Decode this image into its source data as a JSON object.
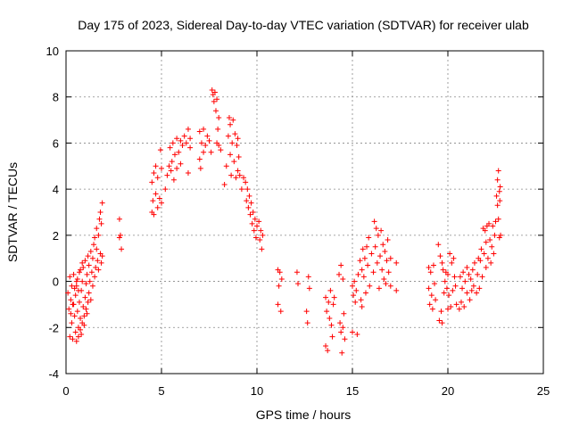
{
  "chart_data": {
    "type": "scatter",
    "title": "Day 175 of 2023, Sidereal Day-to-day VTEC variation (SDTVAR) for receiver ulab",
    "xlabel": "GPS time / hours",
    "ylabel": "SDTVAR / TECUs",
    "xlim": [
      0,
      25
    ],
    "ylim": [
      -4,
      10
    ],
    "xticks": [
      0,
      5,
      10,
      15,
      20,
      25
    ],
    "yticks": [
      -4,
      -2,
      0,
      2,
      4,
      6,
      8,
      10
    ],
    "xtick_labels": [
      "0",
      "5",
      "10",
      "15",
      "20",
      "25"
    ],
    "ytick_labels": [
      "-4",
      "-2",
      "0",
      "2",
      "4",
      "6",
      "8",
      "10"
    ],
    "grid": true,
    "marker": "+",
    "color": "#ff0000",
    "series": [
      {
        "name": "SDTVAR",
        "points": [
          [
            0.1,
            -0.5
          ],
          [
            0.15,
            -1.2
          ],
          [
            0.2,
            -2.4
          ],
          [
            0.2,
            0.2
          ],
          [
            0.25,
            -0.8
          ],
          [
            0.3,
            -1.8
          ],
          [
            0.3,
            -0.2
          ],
          [
            0.35,
            -2.5
          ],
          [
            0.4,
            -1.0
          ],
          [
            0.4,
            0.3
          ],
          [
            0.45,
            -1.5
          ],
          [
            0.5,
            -0.6
          ],
          [
            0.5,
            -2.2
          ],
          [
            0.55,
            -0.2
          ],
          [
            0.6,
            -1.3
          ],
          [
            0.6,
            0.1
          ],
          [
            0.65,
            -2.0
          ],
          [
            0.7,
            -0.9
          ],
          [
            0.7,
            0.4
          ],
          [
            0.75,
            -1.6
          ],
          [
            0.8,
            -0.4
          ],
          [
            0.8,
            -2.3
          ],
          [
            0.85,
            0.0
          ],
          [
            0.9,
            -1.1
          ],
          [
            0.9,
            0.6
          ],
          [
            0.95,
            -1.9
          ],
          [
            1.0,
            -0.7
          ],
          [
            1.0,
            0.9
          ],
          [
            1.05,
            -0.1
          ],
          [
            1.1,
            -1.4
          ],
          [
            1.1,
            0.3
          ],
          [
            1.15,
            1.1
          ],
          [
            1.2,
            -0.5
          ],
          [
            1.2,
            0.7
          ],
          [
            1.25,
            0.0
          ],
          [
            1.3,
            1.3
          ],
          [
            1.3,
            -0.8
          ],
          [
            1.35,
            0.4
          ],
          [
            1.4,
            1.0
          ],
          [
            1.4,
            -0.2
          ],
          [
            1.45,
            1.6
          ],
          [
            1.5,
            0.2
          ],
          [
            1.5,
            1.9
          ],
          [
            1.55,
            0.6
          ],
          [
            1.6,
            1.4
          ],
          [
            1.6,
            2.3
          ],
          [
            1.65,
            0.9
          ],
          [
            1.7,
            2.0
          ],
          [
            1.7,
            0.5
          ],
          [
            1.75,
            2.7
          ],
          [
            1.8,
            1.2
          ],
          [
            1.8,
            3.0
          ],
          [
            1.85,
            0.8
          ],
          [
            1.85,
            2.5
          ],
          [
            1.9,
            3.4
          ],
          [
            1.9,
            1.1
          ],
          [
            0.55,
            -2.6
          ],
          [
            0.65,
            -2.4
          ],
          [
            0.75,
            -2.1
          ],
          [
            0.85,
            -1.8
          ],
          [
            0.95,
            -1.5
          ],
          [
            1.05,
            -1.2
          ],
          [
            1.15,
            -0.9
          ],
          [
            0.25,
            -1.4
          ],
          [
            0.35,
            -1.0
          ],
          [
            0.45,
            -0.3
          ],
          [
            0.55,
            0.0
          ],
          [
            0.65,
            -0.4
          ],
          [
            0.75,
            0.5
          ],
          [
            0.85,
            0.8
          ],
          [
            2.8,
            2.7
          ],
          [
            2.85,
            2.0
          ],
          [
            2.9,
            1.4
          ],
          [
            2.8,
            1.9
          ],
          [
            4.5,
            3.0
          ],
          [
            4.5,
            4.3
          ],
          [
            4.55,
            3.5
          ],
          [
            4.6,
            4.7
          ],
          [
            4.6,
            2.9
          ],
          [
            4.7,
            3.8
          ],
          [
            4.7,
            5.0
          ],
          [
            4.8,
            3.2
          ],
          [
            4.8,
            4.5
          ],
          [
            4.9,
            3.6
          ],
          [
            4.95,
            5.7
          ],
          [
            5.0,
            4.9
          ],
          [
            5.0,
            3.4
          ],
          [
            5.2,
            4.0
          ],
          [
            5.3,
            4.6
          ],
          [
            5.4,
            5.0
          ],
          [
            5.45,
            5.8
          ],
          [
            5.5,
            4.8
          ],
          [
            5.55,
            5.2
          ],
          [
            5.6,
            6.0
          ],
          [
            5.65,
            4.4
          ],
          [
            5.7,
            5.5
          ],
          [
            5.8,
            6.2
          ],
          [
            5.8,
            4.9
          ],
          [
            5.9,
            5.6
          ],
          [
            6.0,
            6.1
          ],
          [
            6.0,
            5.1
          ],
          [
            6.1,
            5.9
          ],
          [
            6.2,
            6.3
          ],
          [
            6.3,
            6.0
          ],
          [
            6.4,
            6.6
          ],
          [
            6.4,
            4.7
          ],
          [
            6.5,
            5.8
          ],
          [
            6.5,
            6.2
          ],
          [
            7.0,
            6.5
          ],
          [
            7.0,
            5.3
          ],
          [
            7.05,
            4.9
          ],
          [
            7.1,
            6.0
          ],
          [
            7.2,
            5.6
          ],
          [
            7.2,
            6.6
          ],
          [
            7.3,
            5.9
          ],
          [
            7.4,
            6.3
          ],
          [
            7.5,
            6.1
          ],
          [
            7.6,
            5.6
          ],
          [
            7.65,
            8.3
          ],
          [
            7.7,
            8.1
          ],
          [
            7.75,
            7.8
          ],
          [
            7.8,
            8.2
          ],
          [
            7.85,
            7.4
          ],
          [
            7.9,
            7.9
          ],
          [
            7.9,
            6.0
          ],
          [
            7.95,
            6.6
          ],
          [
            8.0,
            7.1
          ],
          [
            8.0,
            5.9
          ],
          [
            8.1,
            5.7
          ],
          [
            8.3,
            4.2
          ],
          [
            8.4,
            5.0
          ],
          [
            8.5,
            6.3
          ],
          [
            8.55,
            7.1
          ],
          [
            8.6,
            5.5
          ],
          [
            8.6,
            6.8
          ],
          [
            8.65,
            4.6
          ],
          [
            8.7,
            6.0
          ],
          [
            8.75,
            7.0
          ],
          [
            8.8,
            5.2
          ],
          [
            8.85,
            6.4
          ],
          [
            8.9,
            4.5
          ],
          [
            8.95,
            5.9
          ],
          [
            9.0,
            6.2
          ],
          [
            9.0,
            4.8
          ],
          [
            9.05,
            5.4
          ],
          [
            9.1,
            4.6
          ],
          [
            9.2,
            4.0
          ],
          [
            9.3,
            4.5
          ],
          [
            9.4,
            4.3
          ],
          [
            9.45,
            3.5
          ],
          [
            9.5,
            4.0
          ],
          [
            9.55,
            3.2
          ],
          [
            9.6,
            3.7
          ],
          [
            9.65,
            2.9
          ],
          [
            9.7,
            3.4
          ],
          [
            9.75,
            2.5
          ],
          [
            9.8,
            3.0
          ],
          [
            9.85,
            2.2
          ],
          [
            9.9,
            2.7
          ],
          [
            9.95,
            1.9
          ],
          [
            10.0,
            2.4
          ],
          [
            10.1,
            2.6
          ],
          [
            10.15,
            1.8
          ],
          [
            10.2,
            2.2
          ],
          [
            10.25,
            1.4
          ],
          [
            10.3,
            2.0
          ],
          [
            11.1,
            0.5
          ],
          [
            11.1,
            -1.0
          ],
          [
            11.15,
            -0.2
          ],
          [
            11.2,
            0.4
          ],
          [
            11.25,
            -1.3
          ],
          [
            11.3,
            0.1
          ],
          [
            12.1,
            0.4
          ],
          [
            12.15,
            -0.1
          ],
          [
            12.6,
            -1.3
          ],
          [
            12.65,
            -1.8
          ],
          [
            12.7,
            0.2
          ],
          [
            12.75,
            -0.3
          ],
          [
            13.6,
            -0.7
          ],
          [
            13.6,
            -2.8
          ],
          [
            13.65,
            -1.3
          ],
          [
            13.7,
            -3.0
          ],
          [
            13.75,
            -0.9
          ],
          [
            13.8,
            -1.6
          ],
          [
            13.85,
            -0.4
          ],
          [
            13.9,
            -1.9
          ],
          [
            13.95,
            -2.4
          ],
          [
            14.0,
            -1.0
          ],
          [
            14.05,
            -0.7
          ],
          [
            14.3,
            0.3
          ],
          [
            14.35,
            -1.8
          ],
          [
            14.4,
            0.7
          ],
          [
            14.4,
            -2.2
          ],
          [
            14.45,
            -3.1
          ],
          [
            14.5,
            0.1
          ],
          [
            14.5,
            -2.0
          ],
          [
            14.55,
            -1.4
          ],
          [
            14.6,
            -2.5
          ],
          [
            15.0,
            -0.2
          ],
          [
            15.0,
            -2.2
          ],
          [
            15.05,
            -0.6
          ],
          [
            15.1,
            0.0
          ],
          [
            15.15,
            -0.9
          ],
          [
            15.2,
            -0.4
          ],
          [
            15.25,
            -2.3
          ],
          [
            15.3,
            0.3
          ],
          [
            15.4,
            0.9
          ],
          [
            15.45,
            -0.8
          ],
          [
            15.5,
            0.5
          ],
          [
            15.5,
            -1.1
          ],
          [
            15.55,
            1.4
          ],
          [
            15.6,
            0.2
          ],
          [
            15.65,
            1.0
          ],
          [
            15.7,
            -0.5
          ],
          [
            15.75,
            1.5
          ],
          [
            15.8,
            0.7
          ],
          [
            15.85,
            1.9
          ],
          [
            15.9,
            -0.2
          ],
          [
            16.0,
            1.2
          ],
          [
            16.1,
            0.4
          ],
          [
            16.15,
            2.6
          ],
          [
            16.2,
            1.5
          ],
          [
            16.25,
            2.3
          ],
          [
            16.3,
            0.8
          ],
          [
            16.35,
            2.0
          ],
          [
            16.4,
            -0.3
          ],
          [
            16.45,
            1.1
          ],
          [
            16.5,
            2.2
          ],
          [
            16.55,
            0.5
          ],
          [
            16.6,
            1.6
          ],
          [
            16.65,
            0.1
          ],
          [
            16.7,
            1.3
          ],
          [
            16.75,
            -0.1
          ],
          [
            16.8,
            0.9
          ],
          [
            16.85,
            1.8
          ],
          [
            16.9,
            0.4
          ],
          [
            17.0,
            1.0
          ],
          [
            17.0,
            -0.2
          ],
          [
            17.3,
            0.8
          ],
          [
            17.3,
            -0.4
          ],
          [
            19.0,
            0.6
          ],
          [
            19.0,
            -0.3
          ],
          [
            19.05,
            -1.0
          ],
          [
            19.1,
            0.4
          ],
          [
            19.15,
            -0.6
          ],
          [
            19.2,
            -1.2
          ],
          [
            19.25,
            0.7
          ],
          [
            19.3,
            -0.1
          ],
          [
            19.35,
            -0.8
          ],
          [
            19.5,
            1.6
          ],
          [
            19.55,
            -1.7
          ],
          [
            19.6,
            1.1
          ],
          [
            19.65,
            -1.3
          ],
          [
            19.7,
            0.8
          ],
          [
            19.7,
            -1.8
          ],
          [
            19.75,
            0.5
          ],
          [
            19.8,
            -0.5
          ],
          [
            19.85,
            0.0
          ],
          [
            19.9,
            0.4
          ],
          [
            19.95,
            -0.3
          ],
          [
            20.0,
            0.3
          ],
          [
            20.0,
            -1.2
          ],
          [
            20.05,
            -0.6
          ],
          [
            20.1,
            1.2
          ],
          [
            20.15,
            -1.1
          ],
          [
            20.2,
            0.8
          ],
          [
            20.25,
            -0.4
          ],
          [
            20.3,
            1.0
          ],
          [
            20.35,
            0.2
          ],
          [
            20.4,
            -0.2
          ],
          [
            20.45,
            -1.0
          ],
          [
            20.6,
            -1.2
          ],
          [
            20.65,
            0.2
          ],
          [
            20.7,
            -0.9
          ],
          [
            20.75,
            -0.3
          ],
          [
            20.8,
            0.4
          ],
          [
            20.85,
            -1.1
          ],
          [
            20.9,
            0.0
          ],
          [
            21.0,
            -0.5
          ],
          [
            21.0,
            0.6
          ],
          [
            21.1,
            0.3
          ],
          [
            21.15,
            -0.8
          ],
          [
            21.2,
            0.1
          ],
          [
            21.25,
            -0.4
          ],
          [
            21.3,
            0.5
          ],
          [
            21.35,
            -0.2
          ],
          [
            21.4,
            0.8
          ],
          [
            21.5,
            -0.5
          ],
          [
            21.55,
            0.3
          ],
          [
            21.6,
            1.0
          ],
          [
            21.65,
            -0.3
          ],
          [
            21.7,
            0.9
          ],
          [
            21.75,
            1.4
          ],
          [
            21.8,
            0.2
          ],
          [
            21.85,
            2.3
          ],
          [
            21.9,
            1.2
          ],
          [
            21.95,
            2.2
          ],
          [
            22.0,
            0.6
          ],
          [
            22.0,
            1.7
          ],
          [
            22.05,
            2.4
          ],
          [
            22.1,
            1.0
          ],
          [
            22.15,
            2.5
          ],
          [
            22.2,
            1.8
          ],
          [
            22.25,
            0.8
          ],
          [
            22.3,
            1.5
          ],
          [
            22.35,
            2.4
          ],
          [
            22.4,
            1.2
          ],
          [
            22.45,
            2.0
          ],
          [
            22.5,
            2.6
          ],
          [
            22.55,
            3.7
          ],
          [
            22.6,
            4.4
          ],
          [
            22.6,
            3.3
          ],
          [
            22.65,
            2.7
          ],
          [
            22.65,
            4.8
          ],
          [
            22.7,
            3.9
          ],
          [
            22.7,
            1.9
          ],
          [
            22.72,
            3.5
          ],
          [
            22.74,
            4.1
          ],
          [
            22.76,
            2.0
          ]
        ]
      }
    ]
  }
}
